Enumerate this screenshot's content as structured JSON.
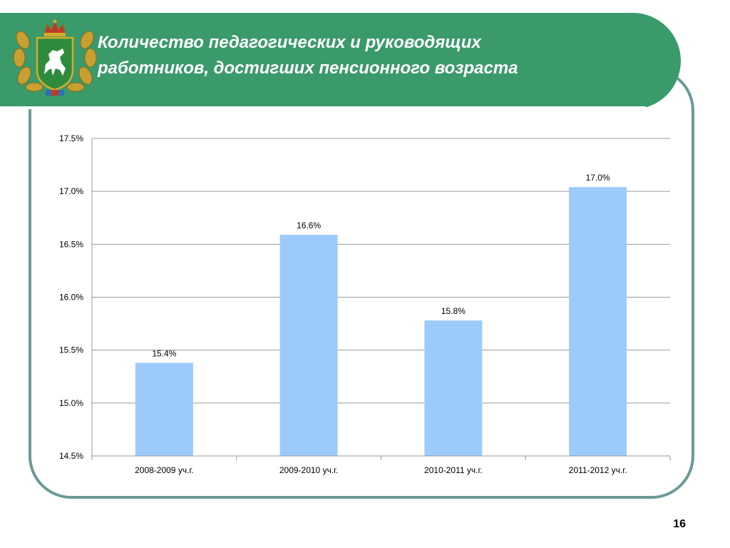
{
  "slide": {
    "title_line1": "Количество педагогических и руководящих",
    "title_line2": "работников, достигших пенсионного возраста",
    "page_number": "16"
  },
  "colors": {
    "header": "#3a9a6a",
    "frame": "#6b9a98",
    "bar": "#9ccbfb",
    "grid": "#9a9a9a"
  },
  "chart_data": {
    "type": "bar",
    "categories": [
      "2008-2009 уч.г.",
      "2009-2010 уч.г.",
      "2010-2011 уч.г.",
      "2011-2012 уч.г."
    ],
    "values": [
      15.38,
      16.59,
      15.78,
      17.04
    ],
    "data_labels": [
      "15.4%",
      "16.6%",
      "15.8%",
      "17.0%"
    ],
    "title": "",
    "xlabel": "",
    "ylabel": "",
    "ylim": [
      14.5,
      17.5
    ],
    "yticks": [
      14.5,
      15.0,
      15.5,
      16.0,
      16.5,
      17.0,
      17.5
    ],
    "ytick_labels": [
      "14.5%",
      "15.0%",
      "15.5%",
      "16.0%",
      "16.5%",
      "17.0%",
      "17.5%"
    ],
    "grid": true,
    "legend": "none"
  }
}
